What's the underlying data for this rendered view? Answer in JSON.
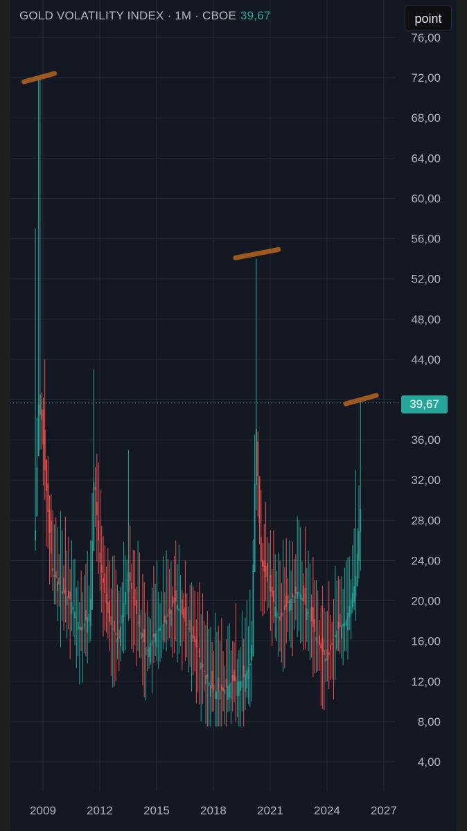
{
  "header": {
    "title": "GOLD VOLATILITY INDEX · 1M · CBOE",
    "last_value": "39,67"
  },
  "toolbar": {
    "point_label": "point"
  },
  "price_badge": "39,67",
  "colors": {
    "background": "#141823",
    "grid": "#262b38",
    "up": "#26a69a",
    "down": "#ef5350",
    "axis_text": "#b2b5be",
    "annotation": "#b5651d"
  },
  "chart_data": {
    "type": "candlestick",
    "title": "GOLD VOLATILITY INDEX · 1M · CBOE",
    "y_ticks": [
      "76,00",
      "72,00",
      "68,00",
      "64,00",
      "60,00",
      "56,00",
      "52,00",
      "48,00",
      "44,00",
      "40,00",
      "36,00",
      "32,00",
      "28,00",
      "24,00",
      "20,00",
      "16,00",
      "12,00",
      "8,00",
      "4,00"
    ],
    "x_ticks": [
      "2009",
      "2012",
      "2015",
      "2018",
      "2021",
      "2024",
      "2027"
    ],
    "ylim": [
      4,
      76
    ],
    "xlim": [
      2008.5,
      2027
    ],
    "grid": true,
    "last_price": 39.67,
    "anchors": [
      [
        2008.6,
        27,
        57,
        25
      ],
      [
        2008.8,
        42,
        72,
        35
      ],
      [
        2009.1,
        33,
        44,
        30
      ],
      [
        2009.5,
        23,
        29,
        21
      ],
      [
        2010.0,
        21,
        27,
        18
      ],
      [
        2010.5,
        20,
        26,
        17
      ],
      [
        2011.0,
        17,
        23,
        15
      ],
      [
        2011.5,
        19,
        26,
        16
      ],
      [
        2011.7,
        33,
        43,
        27
      ],
      [
        2012.0,
        24,
        31,
        21
      ],
      [
        2012.5,
        18,
        24,
        15
      ],
      [
        2013.0,
        16,
        21,
        13
      ],
      [
        2013.5,
        23,
        35,
        18
      ],
      [
        2014.0,
        18,
        26,
        15
      ],
      [
        2014.5,
        15,
        20,
        13
      ],
      [
        2015.0,
        17,
        24,
        14
      ],
      [
        2015.5,
        18,
        25,
        15
      ],
      [
        2016.0,
        20,
        26,
        16
      ],
      [
        2016.5,
        18,
        24,
        14
      ],
      [
        2017.0,
        16,
        21,
        13
      ],
      [
        2017.5,
        13,
        18,
        11
      ],
      [
        2018.0,
        11,
        15,
        9
      ],
      [
        2018.5,
        11,
        15,
        9
      ],
      [
        2019.0,
        12,
        16,
        9
      ],
      [
        2019.5,
        12,
        19,
        9
      ],
      [
        2020.0,
        14,
        18,
        10
      ],
      [
        2020.25,
        38,
        54,
        29
      ],
      [
        2020.5,
        24,
        31,
        19
      ],
      [
        2021.0,
        21,
        27,
        17
      ],
      [
        2021.5,
        18,
        24,
        15
      ],
      [
        2022.0,
        20,
        26,
        16
      ],
      [
        2022.5,
        21,
        28,
        17
      ],
      [
        2023.0,
        19,
        25,
        15
      ],
      [
        2023.5,
        16,
        21,
        13
      ],
      [
        2024.0,
        14,
        19,
        12
      ],
      [
        2024.5,
        17,
        22,
        15
      ],
      [
        2025.0,
        18,
        24,
        15
      ],
      [
        2025.5,
        22,
        33,
        18
      ],
      [
        2025.8,
        30,
        40,
        23
      ]
    ],
    "highlights": [
      "72,00",
      "54,00",
      "39,67"
    ]
  }
}
